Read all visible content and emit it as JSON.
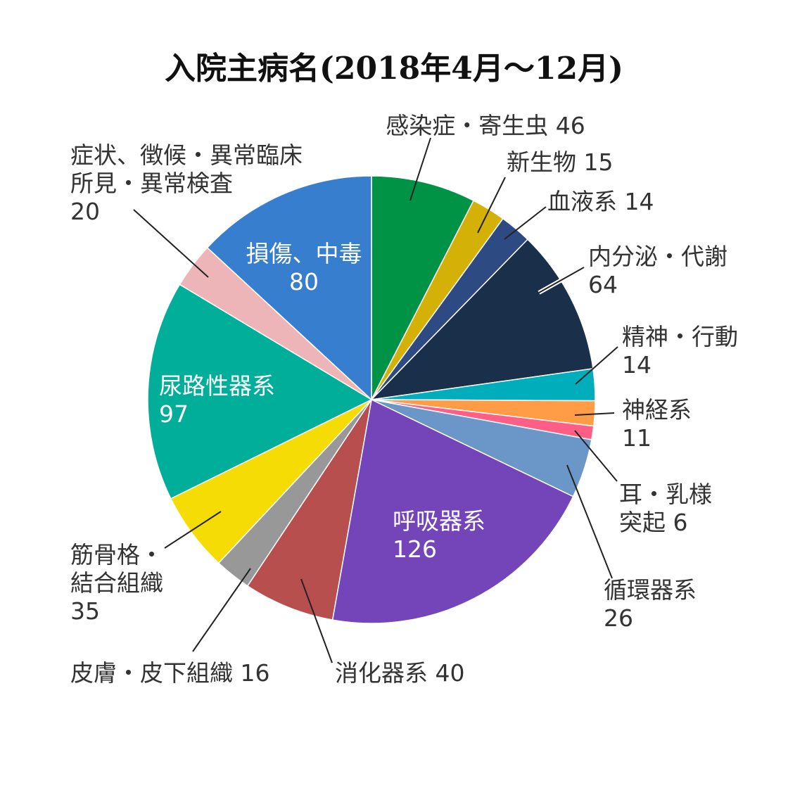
{
  "chart_data": {
    "type": "pie",
    "title": "入院主病名(2018年4月～12月)",
    "start": "12 o'clock, clockwise",
    "slices": [
      {
        "label_lines": [
          "感染症・寄生虫 46"
        ],
        "name": "感染症・寄生虫",
        "value": 46,
        "color": "#009245"
      },
      {
        "label_lines": [
          "新生物 15"
        ],
        "name": "新生物",
        "value": 15,
        "color": "#D4B106"
      },
      {
        "label_lines": [
          "血液系 14"
        ],
        "name": "血液系",
        "value": 14,
        "color": "#2E4A82"
      },
      {
        "label_lines": [
          "内分泌・代謝",
          "64"
        ],
        "name": "内分泌・代謝",
        "value": 64,
        "color": "#1A2F4A"
      },
      {
        "label_lines": [
          "精神・行動",
          "14"
        ],
        "name": "精神・行動",
        "value": 14,
        "color": "#00AEBB"
      },
      {
        "label_lines": [
          "神経系",
          "11"
        ],
        "name": "神経系",
        "value": 11,
        "color": "#FF9C45"
      },
      {
        "label_lines": [
          "耳・乳様",
          "突起 6"
        ],
        "name": "耳・乳様突起",
        "value": 6,
        "color": "#FF5E86"
      },
      {
        "label_lines": [
          "循環器系",
          "26"
        ],
        "name": "循環器系",
        "value": 26,
        "color": "#6A96C8"
      },
      {
        "label_lines": [
          "呼吸器系",
          "126"
        ],
        "name": "呼吸器系",
        "value": 126,
        "color": "#7345B9"
      },
      {
        "label_lines": [
          "消化器系 40"
        ],
        "name": "消化器系",
        "value": 40,
        "color": "#B84F4F"
      },
      {
        "label_lines": [
          "皮膚・皮下組織 16"
        ],
        "name": "皮膚・皮下組織",
        "value": 16,
        "color": "#989898"
      },
      {
        "label_lines": [
          "筋骨格・",
          "結合組織",
          "35"
        ],
        "name": "筋骨格・結合組織",
        "value": 35,
        "color": "#F5DC05"
      },
      {
        "label_lines": [
          "尿路性器系",
          "97"
        ],
        "name": "尿路性器系",
        "value": 97,
        "color": "#00AE99"
      },
      {
        "label_lines": [
          "症状、徴候・異常臨床",
          "所見・異常検査",
          "20"
        ],
        "name": "症状、徴候・異常臨床所見・異常検査",
        "value": 20,
        "color": "#EDB5B8"
      },
      {
        "label_lines": [
          "損傷、中毒",
          "80"
        ],
        "name": "損傷、中毒",
        "value": 80,
        "color": "#377ECF"
      }
    ]
  }
}
